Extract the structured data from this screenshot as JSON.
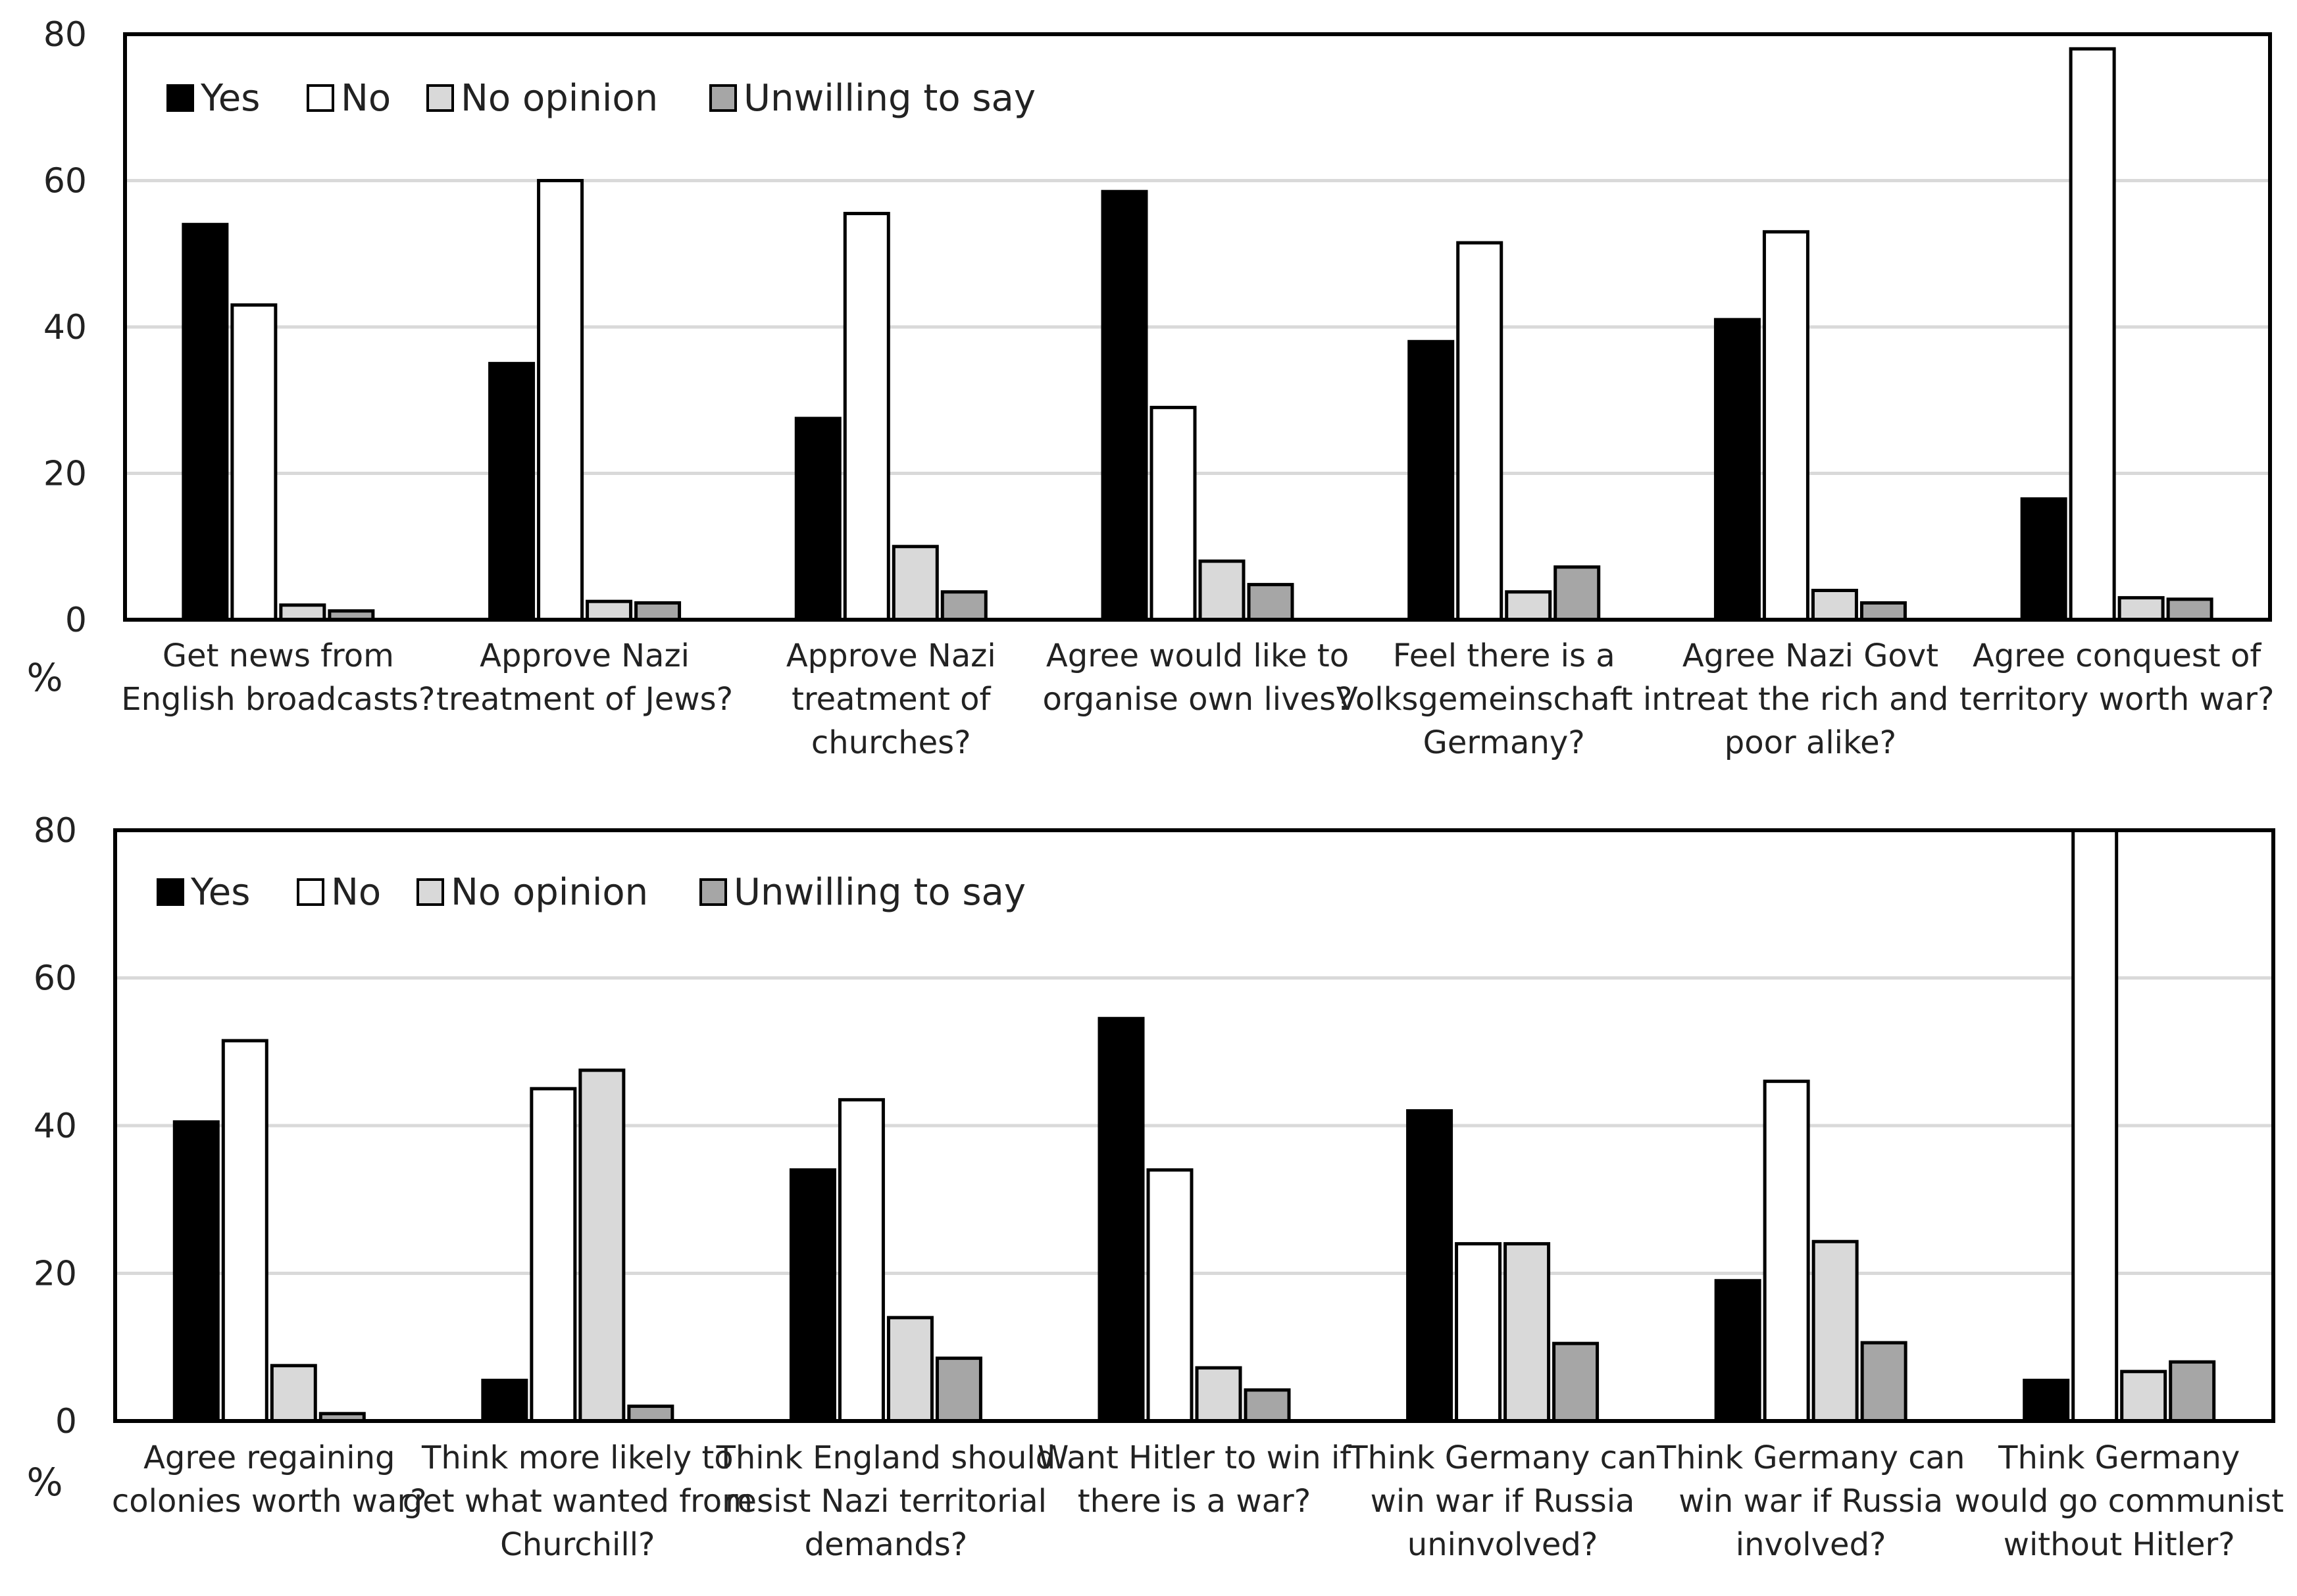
{
  "chart_data": [
    {
      "type": "bar",
      "unit_label": "%",
      "ylim": [
        0,
        80
      ],
      "yticks": [
        "0",
        "20",
        "40",
        "60",
        "80"
      ],
      "grid": true,
      "legend_position": "top-left",
      "series": [
        {
          "name": "Yes",
          "color": "#000000",
          "values": [
            54,
            35,
            27.5,
            58.5,
            38,
            41,
            16.5
          ]
        },
        {
          "name": "No",
          "color": "#ffffff",
          "values": [
            43,
            60,
            55.5,
            29,
            51.5,
            53,
            78
          ]
        },
        {
          "name": "No opinion",
          "color": "#d9d9d9",
          "values": [
            2,
            2.5,
            10,
            8,
            3.8,
            4,
            3
          ]
        },
        {
          "name": "Unwilling to say",
          "color": "#a6a6a6",
          "values": [
            1.2,
            2.3,
            3.8,
            4.8,
            7.2,
            2.3,
            2.8
          ]
        }
      ],
      "categories": [
        [
          "Get news from",
          "English broadcasts?"
        ],
        [
          "Approve Nazi",
          "treatment of Jews?"
        ],
        [
          "Approve Nazi",
          "treatment of",
          "churches?"
        ],
        [
          "Agree would like to",
          "organise own lives?"
        ],
        [
          "Feel there is a",
          "Volksgemeinschaft in",
          "Germany?"
        ],
        [
          "Agree Nazi Govt",
          "treat the rich and",
          "poor alike?"
        ],
        [
          "Agree conquest of",
          "territory worth war?"
        ]
      ]
    },
    {
      "type": "bar",
      "unit_label": "%",
      "ylim": [
        0,
        80
      ],
      "yticks": [
        "0",
        "20",
        "40",
        "60",
        "80"
      ],
      "grid": true,
      "legend_position": "top-left",
      "series": [
        {
          "name": "Yes",
          "color": "#000000",
          "values": [
            40.5,
            5.5,
            34,
            54.5,
            42,
            19,
            5.5
          ]
        },
        {
          "name": "No",
          "color": "#ffffff",
          "values": [
            51.5,
            45,
            43.5,
            34,
            24,
            46,
            82
          ]
        },
        {
          "name": "No opinion",
          "color": "#d9d9d9",
          "values": [
            7.5,
            47.5,
            14,
            7.2,
            24,
            24.3,
            6.7
          ]
        },
        {
          "name": "Unwilling to say",
          "color": "#a6a6a6",
          "values": [
            1,
            2,
            8.5,
            4.2,
            10.5,
            10.6,
            8
          ]
        }
      ],
      "categories": [
        [
          "Agree regaining",
          "colonies worth war?"
        ],
        [
          "Think more likely to",
          "get what wanted from",
          "Churchill?"
        ],
        [
          "Think England should",
          "resist Nazi territorial",
          "demands?"
        ],
        [
          "Want Hitler to win if",
          "there is a war?"
        ],
        [
          "Think Germany can",
          "win war if Russia",
          "uninvolved?"
        ],
        [
          "Think Germany can",
          "win war if Russia",
          "involved?"
        ],
        [
          "Think Germany",
          "would go communist",
          "without Hitler?"
        ]
      ]
    }
  ]
}
